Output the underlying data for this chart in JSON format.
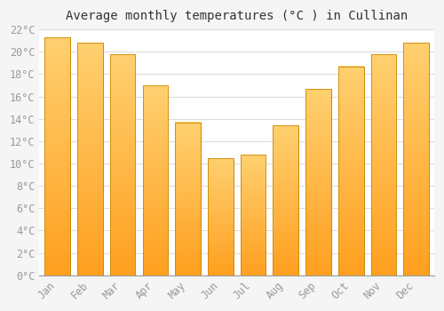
{
  "title": "Average monthly temperatures (°C ) in Cullinan",
  "months": [
    "Jan",
    "Feb",
    "Mar",
    "Apr",
    "May",
    "Jun",
    "Jul",
    "Aug",
    "Sep",
    "Oct",
    "Nov",
    "Dec"
  ],
  "values": [
    21.3,
    20.8,
    19.8,
    17.0,
    13.7,
    10.5,
    10.8,
    13.4,
    16.7,
    18.7,
    19.8,
    20.8
  ],
  "bar_color_top": "#FFD070",
  "bar_color_bottom": "#FFA020",
  "bar_edge_color": "#CC8800",
  "ylim": [
    0,
    22
  ],
  "ytick_step": 2,
  "background_color": "#f5f5f5",
  "plot_bg_color": "#ffffff",
  "grid_color": "#dddddd",
  "title_fontsize": 10,
  "tick_fontsize": 8.5,
  "tick_color": "#999999",
  "title_color": "#333333"
}
